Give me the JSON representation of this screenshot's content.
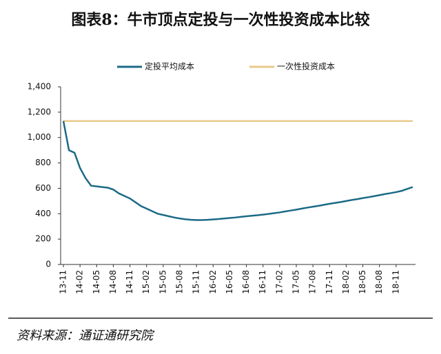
{
  "chart_data": {
    "type": "line",
    "title": "图表8：牛市顶点定投与一次性投资成本比较",
    "source": "资料来源：通证通研究院",
    "categories": [
      "13-11",
      null,
      null,
      "14-02",
      null,
      null,
      "14-05",
      null,
      null,
      "14-08",
      null,
      null,
      "14-11",
      null,
      null,
      "15-02",
      null,
      null,
      "15-05",
      null,
      null,
      "15-08",
      null,
      null,
      "15-11",
      null,
      null,
      "16-02",
      null,
      null,
      "16-05",
      null,
      null,
      "16-08",
      null,
      null,
      "16-11",
      null,
      null,
      "17-02",
      null,
      null,
      "17-05",
      null,
      null,
      "17-08",
      null,
      null,
      "17-11",
      null,
      null,
      "18-02",
      null,
      null,
      "18-05",
      null,
      null,
      "18-08",
      null,
      null,
      "18-11",
      null,
      null,
      null
    ],
    "series": [
      {
        "name": "定投平均成本",
        "color": "#1b6a86",
        "values": [
          1130,
          900,
          880,
          760,
          680,
          620,
          615,
          610,
          605,
          590,
          560,
          540,
          520,
          490,
          460,
          440,
          420,
          400,
          390,
          380,
          370,
          362,
          356,
          352,
          350,
          350,
          352,
          355,
          358,
          362,
          366,
          370,
          375,
          380,
          384,
          388,
          393,
          398,
          404,
          410,
          418,
          425,
          432,
          440,
          448,
          455,
          462,
          470,
          478,
          485,
          492,
          500,
          508,
          515,
          523,
          530,
          538,
          546,
          555,
          562,
          570,
          580,
          595,
          610
        ]
      },
      {
        "name": "一次性投资成本",
        "color": "#e8c98a",
        "values": [
          1130,
          1130,
          1130,
          1130,
          1130,
          1130,
          1130,
          1130,
          1130,
          1130,
          1130,
          1130,
          1130,
          1130,
          1130,
          1130,
          1130,
          1130,
          1130,
          1130,
          1130,
          1130,
          1130,
          1130,
          1130,
          1130,
          1130,
          1130,
          1130,
          1130,
          1130,
          1130,
          1130,
          1130,
          1130,
          1130,
          1130,
          1130,
          1130,
          1130,
          1130,
          1130,
          1130,
          1130,
          1130,
          1130,
          1130,
          1130,
          1130,
          1130,
          1130,
          1130,
          1130,
          1130,
          1130,
          1130,
          1130,
          1130,
          1130,
          1130,
          1130,
          1130,
          1130,
          1130
        ]
      }
    ],
    "ylim": [
      0,
      1400
    ],
    "yticks": [
      0,
      200,
      400,
      600,
      800,
      {
        "value": 1000,
        "label": "1,000"
      },
      {
        "value": 1200,
        "label": "1,200"
      },
      {
        "value": 1400,
        "label": "1,400"
      }
    ],
    "grid": false,
    "legend": "top"
  }
}
